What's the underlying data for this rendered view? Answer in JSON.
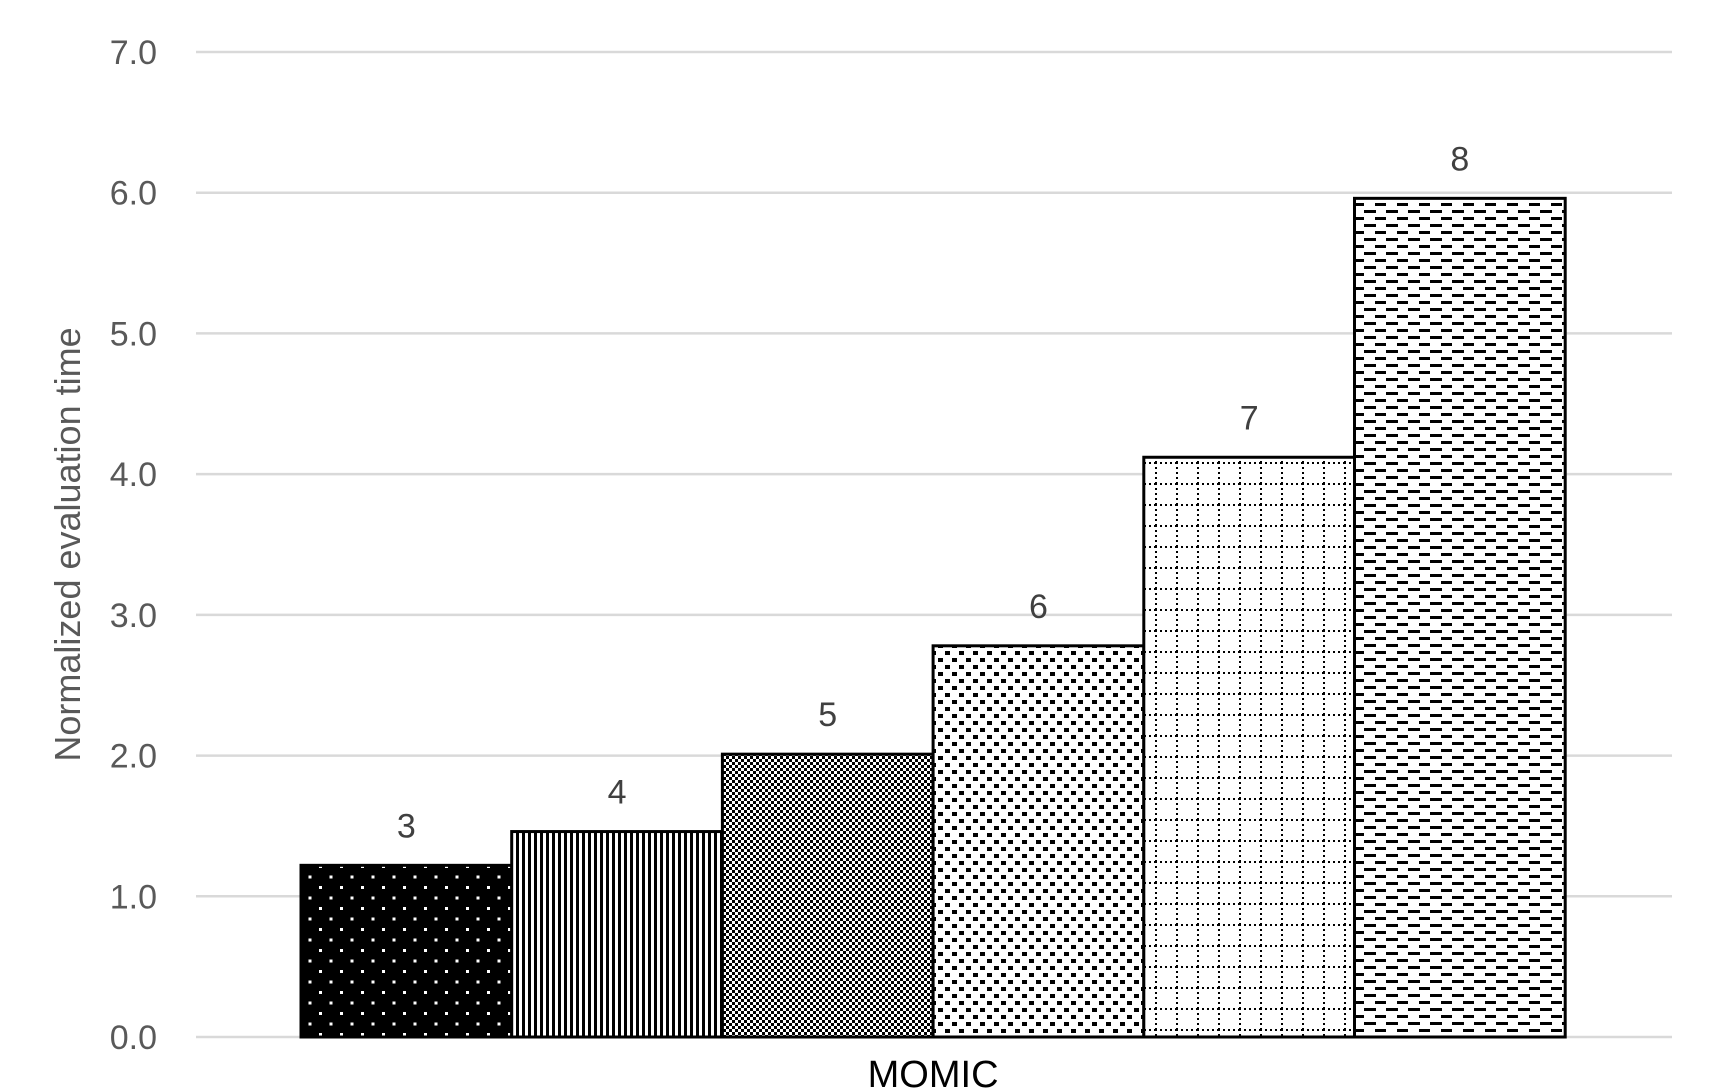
{
  "chart_data": {
    "type": "bar",
    "categories": [
      "MOMIC"
    ],
    "series": [
      {
        "name": "3",
        "values": [
          1.22
        ],
        "pattern": "dots-on-black"
      },
      {
        "name": "4",
        "values": [
          1.46
        ],
        "pattern": "vertical-lines"
      },
      {
        "name": "5",
        "values": [
          2.01
        ],
        "pattern": "dense-checker"
      },
      {
        "name": "6",
        "values": [
          2.78
        ],
        "pattern": "dashed-diagonal"
      },
      {
        "name": "7",
        "values": [
          4.12
        ],
        "pattern": "dotted-grid"
      },
      {
        "name": "8",
        "values": [
          5.96
        ],
        "pattern": "horizontal-dashes"
      }
    ],
    "xlabel": "",
    "ylabel": "Normalized evaluation time",
    "ylim": [
      0,
      7
    ],
    "yticks": [
      "0.0",
      "1.0",
      "2.0",
      "3.0",
      "4.0",
      "5.0",
      "6.0",
      "7.0"
    ],
    "grid": true,
    "legend": "none",
    "colors": {
      "grid": "#d9d9d9",
      "axis_text": "#595959",
      "bar_edge": "#000000"
    }
  }
}
